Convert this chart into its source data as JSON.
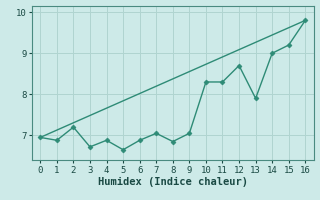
{
  "title": "",
  "xlabel": "Humidex (Indice chaleur)",
  "x_data": [
    0,
    1,
    2,
    3,
    4,
    5,
    6,
    7,
    8,
    9,
    10,
    11,
    12,
    13,
    14,
    15,
    16
  ],
  "y_data": [
    6.95,
    6.88,
    7.2,
    6.72,
    6.88,
    6.65,
    6.88,
    7.05,
    6.85,
    7.05,
    8.3,
    8.3,
    8.7,
    7.9,
    9.0,
    9.2,
    9.8
  ],
  "trend_x": [
    0,
    16
  ],
  "trend_y": [
    6.95,
    9.8
  ],
  "line_color": "#2e8b76",
  "bg_color": "#cdeae8",
  "grid_color": "#b0d4d0",
  "ylim": [
    6.4,
    10.15
  ],
  "xlim": [
    -0.5,
    16.5
  ],
  "yticks": [
    7,
    8,
    9,
    10
  ],
  "xticks": [
    0,
    1,
    2,
    3,
    4,
    5,
    6,
    7,
    8,
    9,
    10,
    11,
    12,
    13,
    14,
    15,
    16
  ],
  "marker": "D",
  "markersize": 2.5,
  "linewidth": 1.0,
  "tick_fontsize": 6.5,
  "label_fontsize": 7.5
}
